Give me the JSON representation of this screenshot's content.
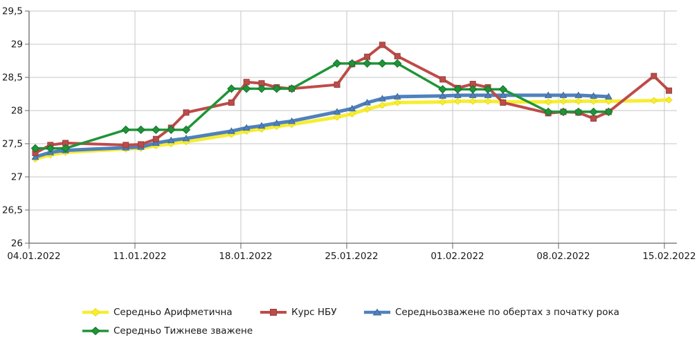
{
  "chart_data": {
    "type": "line",
    "title": "",
    "xlabel": "",
    "ylabel": "",
    "grid": true,
    "legend_position": "bottom",
    "y_axis": {
      "min": 26,
      "max": 29.5,
      "step": 0.5,
      "tick_values": [
        29.5,
        29,
        28.5,
        28,
        27.5,
        27,
        26.5,
        26
      ],
      "tick_labels": [
        "29,5",
        "29",
        "28,5",
        "28",
        "27,5",
        "27",
        "26,5",
        "26"
      ]
    },
    "x_axis": {
      "tick_labels": [
        "04.01.2022",
        "11.01.2022",
        "18.01.2022",
        "25.01.2022",
        "01.02.2022",
        "08.02.2022",
        "15.02.2022"
      ],
      "tick_day_offsets": [
        0,
        7,
        14,
        21,
        28,
        35,
        42
      ]
    },
    "x_point_dates": [
      "04.01",
      "05.01",
      "06.01",
      "10.01",
      "11.01",
      "12.01",
      "13.01",
      "14.01",
      "17.01",
      "18.01",
      "19.01",
      "20.01",
      "21.01",
      "24.01",
      "25.01",
      "26.01",
      "27.01",
      "28.01",
      "31.01",
      "01.02",
      "02.02",
      "03.02",
      "04.02",
      "07.02",
      "08.02",
      "09.02",
      "10.02",
      "11.02",
      "14.02",
      "15.02"
    ],
    "x_day_offsets": [
      0,
      1,
      2,
      6,
      7,
      8,
      9,
      10,
      13,
      14,
      15,
      16,
      17,
      20,
      21,
      22,
      23,
      24,
      27,
      28,
      29,
      30,
      31,
      34,
      35,
      36,
      37,
      38,
      41,
      42
    ],
    "series": [
      {
        "name": "Середньо Арифметична",
        "color": "#F7ED33",
        "marker": "diamond",
        "marker_stroke": "#E8DC1E",
        "line_width": 5,
        "values": [
          27.27,
          27.33,
          27.37,
          27.42,
          27.43,
          27.47,
          27.5,
          27.53,
          27.64,
          27.69,
          27.72,
          27.76,
          27.79,
          27.9,
          27.95,
          28.02,
          28.08,
          28.12,
          28.13,
          28.14,
          28.14,
          28.14,
          28.13,
          28.13,
          28.14,
          28.14,
          28.14,
          28.14,
          28.15,
          28.16
        ]
      },
      {
        "name": "Курс НБУ",
        "color": "#BE4B48",
        "marker": "square",
        "marker_stroke": "#93403E",
        "line_width": 4,
        "values": [
          27.36,
          27.48,
          27.51,
          27.48,
          27.49,
          27.57,
          27.74,
          27.97,
          28.12,
          28.43,
          28.41,
          28.35,
          28.33,
          28.39,
          28.7,
          28.81,
          28.99,
          28.82,
          28.47,
          28.34,
          28.4,
          28.35,
          28.12,
          27.96,
          27.98,
          27.97,
          27.88,
          27.98,
          28.52,
          28.3
        ]
      },
      {
        "name": "Середньозважене по обертах з початку рока",
        "color": "#4F81BD",
        "marker": "triangle",
        "marker_stroke": "#3C6899",
        "line_width": 5,
        "values": [
          27.3,
          27.37,
          27.4,
          27.44,
          27.45,
          27.51,
          27.55,
          27.58,
          27.69,
          27.74,
          27.77,
          27.81,
          27.84,
          27.98,
          28.03,
          28.12,
          28.18,
          28.21,
          28.22,
          28.23,
          28.23,
          28.23,
          28.23,
          28.23,
          28.23,
          28.23,
          28.22,
          28.21,
          null,
          null
        ]
      },
      {
        "name": "Середньо Тижневе зважене",
        "color": "#1E9538",
        "marker": "diamond",
        "marker_stroke": "#15702A",
        "line_width": 3.5,
        "values": [
          27.43,
          27.43,
          27.43,
          27.71,
          27.71,
          27.71,
          27.71,
          27.71,
          28.33,
          28.33,
          28.33,
          28.33,
          28.33,
          28.71,
          28.71,
          28.71,
          28.71,
          28.71,
          28.32,
          28.32,
          28.32,
          28.32,
          28.32,
          27.98,
          27.98,
          27.98,
          27.98,
          27.98,
          null,
          null
        ]
      }
    ]
  },
  "legend": {
    "items": [
      {
        "label": "Середньо Арифметична"
      },
      {
        "label": "Курс НБУ"
      },
      {
        "label": "Середньозважене по обертах з початку рока"
      },
      {
        "label": "Середньо Тижневе зважене"
      }
    ]
  },
  "colors": {
    "gridline": "#C6C6C6",
    "axis": "#666666",
    "text": "#1a1a1a",
    "background": "#ffffff"
  }
}
